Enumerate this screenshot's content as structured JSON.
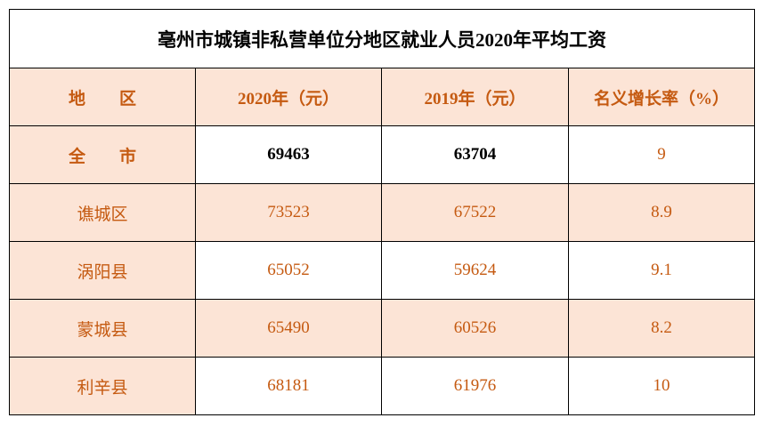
{
  "title": "亳州市城镇非私营单位分地区就业人员2020年平均工资",
  "table": {
    "header": [
      "地　　区",
      "2020年（元）",
      "2019年（元）",
      "名义增长率（%）"
    ],
    "rows": [
      [
        "全　　市",
        69463,
        63704,
        9
      ],
      [
        "谯城区",
        73523,
        67522,
        8.9
      ],
      [
        "涡阳县",
        65052,
        59624,
        9.1
      ],
      [
        "蒙城县",
        65490,
        60526,
        8.2
      ],
      [
        "利辛县",
        68181,
        61976,
        10
      ]
    ]
  }
}
